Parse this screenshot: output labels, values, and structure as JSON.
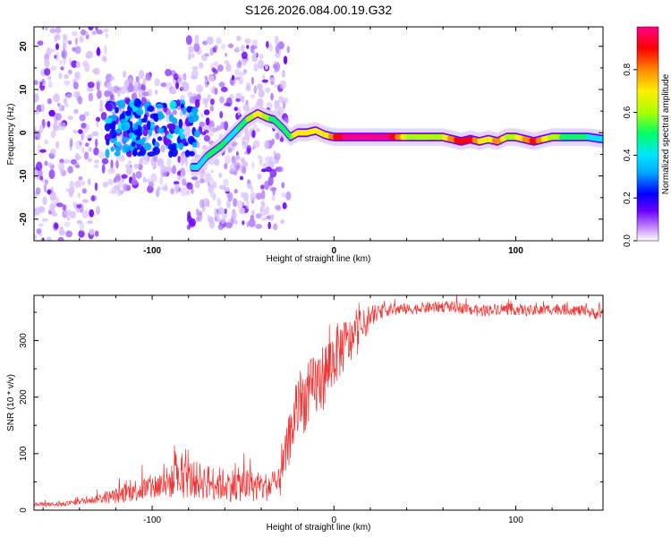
{
  "title": "S126.2026.084.00.19.G32",
  "chart_data": [
    {
      "type": "heatmap",
      "xlabel": "Height of straight line (km)",
      "ylabel": "Frequency (Hz)",
      "xlim": [
        -165,
        148
      ],
      "ylim": [
        -25,
        24.5
      ],
      "xticks": [
        -100,
        0,
        100
      ],
      "yticks": [
        -20,
        -10,
        0,
        10,
        20
      ],
      "grid": false,
      "colorbar": {
        "label": "Normalized spectral amplitude",
        "range": [
          0,
          1
        ],
        "ticks": [
          0.0,
          0.2,
          0.4,
          0.6,
          0.8
        ],
        "colors": [
          "#ffffff",
          "#c58cff",
          "#6a00ff",
          "#0000ff",
          "#00e5ff",
          "#00ff66",
          "#aaff00",
          "#ffee00",
          "#ff8800",
          "#ff0000",
          "#ff0088"
        ]
      },
      "ridge": {
        "x": [
          -75,
          -70,
          -62,
          -55,
          -48,
          -42,
          -37,
          -33,
          -28,
          -24,
          -20,
          -15,
          -10,
          -5,
          0,
          5,
          10,
          20,
          30,
          40,
          50,
          60,
          70,
          75,
          80,
          85,
          90,
          95,
          100,
          110,
          120,
          130,
          140,
          148
        ],
        "freq": [
          -8,
          -5.5,
          -3,
          0,
          3,
          4.5,
          3.5,
          3,
          1,
          -1,
          0,
          0,
          0.5,
          -0.5,
          -1,
          -1,
          -1,
          -1,
          -1,
          -1,
          -1,
          -1,
          -2,
          -1.5,
          -2,
          -1.5,
          -2,
          -1,
          -1,
          -2,
          -1,
          -1,
          -1,
          -1.5
        ],
        "amp": [
          0.35,
          0.4,
          0.45,
          0.35,
          0.5,
          0.65,
          0.55,
          0.45,
          0.5,
          0.45,
          0.7,
          0.7,
          0.65,
          0.6,
          0.8,
          0.9,
          0.95,
          0.95,
          0.95,
          0.6,
          0.55,
          0.6,
          0.9,
          0.85,
          0.7,
          0.6,
          0.8,
          0.6,
          0.6,
          0.85,
          0.55,
          0.45,
          0.4,
          0.4
        ]
      }
    },
    {
      "type": "line",
      "xlabel": "Height of straight line (km)",
      "ylabel": "SNR (10 * v/v)",
      "xlim": [
        -165,
        148
      ],
      "ylim": [
        0,
        380
      ],
      "xticks": [
        -100,
        0,
        100
      ],
      "yticks": [
        0,
        100,
        200,
        300
      ],
      "color": "#ee3333",
      "series": [
        {
          "name": "SNR",
          "x": [
            -165,
            -150,
            -140,
            -130,
            -120,
            -110,
            -100,
            -90,
            -80,
            -70,
            -60,
            -50,
            -40,
            -30,
            -25,
            -20,
            -15,
            -10,
            -5,
            0,
            5,
            10,
            15,
            20,
            25,
            30,
            40,
            50,
            60,
            70,
            80,
            90,
            100,
            110,
            120,
            130,
            140,
            148
          ],
          "values": [
            10,
            10,
            15,
            20,
            25,
            35,
            40,
            50,
            55,
            50,
            45,
            45,
            40,
            45,
            120,
            180,
            200,
            220,
            240,
            270,
            290,
            300,
            320,
            340,
            350,
            355,
            355,
            358,
            360,
            358,
            352,
            356,
            355,
            352,
            356,
            355,
            350,
            345
          ],
          "noise": [
            4,
            4,
            5,
            8,
            14,
            20,
            24,
            30,
            35,
            32,
            30,
            30,
            25,
            28,
            45,
            55,
            60,
            60,
            60,
            55,
            50,
            40,
            35,
            15,
            12,
            12,
            10,
            10,
            10,
            10,
            10,
            10,
            10,
            10,
            10,
            10,
            10,
            10
          ]
        }
      ]
    }
  ]
}
